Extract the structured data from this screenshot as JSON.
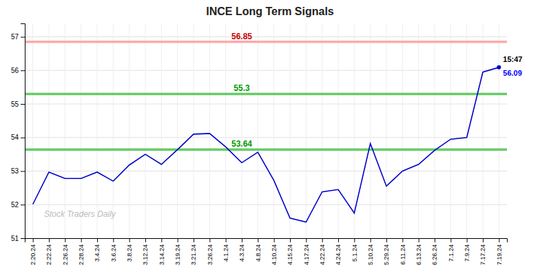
{
  "chart_data": {
    "type": "line",
    "title": "INCE Long Term Signals",
    "categories": [
      "2.20.24",
      "2.22.24",
      "2.26.24",
      "2.28.24",
      "3.4.24",
      "3.6.24",
      "3.8.24",
      "3.12.24",
      "3.14.24",
      "3.19.24",
      "3.21.24",
      "3.26.24",
      "4.1.24",
      "4.3.24",
      "4.8.24",
      "4.10.24",
      "4.15.24",
      "4.17.24",
      "4.22.24",
      "4.24.24",
      "5.1.24",
      "5.10.24",
      "5.29.24",
      "6.11.24",
      "6.13.24",
      "6.26.24",
      "7.1.24",
      "7.9.24",
      "7.17.24",
      "7.19.24"
    ],
    "values": [
      52.01,
      52.97,
      52.78,
      52.78,
      52.97,
      52.7,
      53.18,
      53.5,
      53.2,
      53.64,
      54.1,
      54.12,
      53.72,
      53.25,
      53.56,
      52.72,
      51.6,
      51.48,
      52.38,
      52.45,
      51.75,
      53.82,
      52.55,
      53.0,
      53.2,
      53.62,
      53.95,
      54.0,
      55.95,
      56.09
    ],
    "color": "#0000cc",
    "ylim": [
      51,
      57.4
    ],
    "yticks": [
      51,
      52,
      53,
      54,
      55,
      56,
      57
    ],
    "grid": true,
    "reference_lines": [
      {
        "value": 56.85,
        "label": "56.85",
        "color": "#ffaaaa",
        "label_color": "#cc0000"
      },
      {
        "value": 55.3,
        "label": "55.3",
        "color": "#66cc66",
        "label_color": "#009900"
      },
      {
        "value": 53.64,
        "label": "53.64",
        "color": "#66cc66",
        "label_color": "#009900"
      }
    ],
    "annotations": [
      {
        "text": "15:47",
        "color": "#000000"
      },
      {
        "text": "56.09",
        "color": "#0000ff"
      }
    ],
    "watermark": "Stock Traders Daily"
  }
}
